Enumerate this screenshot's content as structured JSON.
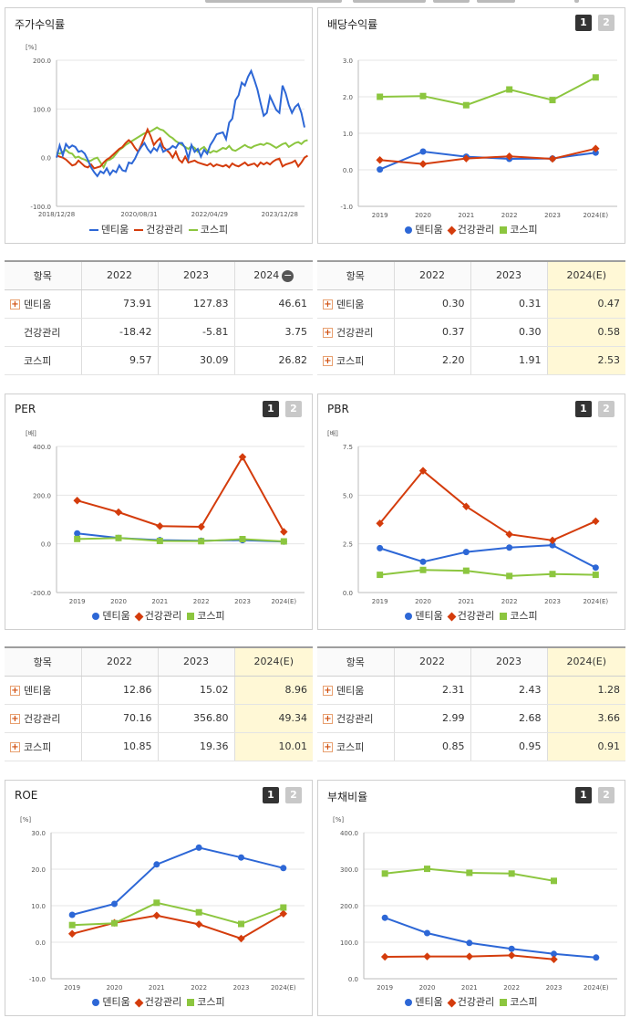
{
  "ui": {
    "btn1": "1",
    "btn2": "2",
    "minus": "−",
    "plus": "+"
  },
  "colors": {
    "dentium": "#2d67d6",
    "health": "#d43c0c",
    "kospi": "#8cc63f"
  },
  "legend": [
    "덴티움",
    "건강관리",
    "코스피"
  ],
  "charts": {
    "stock": {
      "title": "주가수익률",
      "chart_data": {
        "type": "line",
        "unit": "[%]",
        "ylim": [
          -100,
          200
        ],
        "yticks": [
          -100,
          0,
          100,
          200
        ],
        "ytick_labels": [
          "-100.0",
          "0.0",
          "100.0",
          "200.0"
        ],
        "xtick_labels": [
          "2018/12/28",
          "2020/08/31",
          "2022/04/29",
          "2023/12/28"
        ],
        "grid": true,
        "legend_position": "bottom",
        "series": [
          {
            "name": "덴티움",
            "values": [
              0,
              25,
              5,
              28,
              20,
              25,
              22,
              12,
              14,
              8,
              -5,
              -20,
              -30,
              -38,
              -28,
              -32,
              -22,
              -35,
              -26,
              -30,
              -16,
              -26,
              -28,
              -10,
              -12,
              -2,
              12,
              22,
              30,
              18,
              10,
              20,
              14,
              28,
              12,
              16,
              18,
              24,
              20,
              30,
              30,
              20,
              -2,
              26,
              12,
              18,
              2,
              16,
              8,
              26,
              36,
              48,
              50,
              52,
              38,
              72,
              80,
              118,
              128,
              154,
              148,
              166,
              178,
              160,
              140,
              112,
              86,
              92,
              126,
              112,
              98,
              92,
              148,
              132,
              108,
              92,
              104,
              110,
              92,
              62
            ]
          },
          {
            "name": "건강관리",
            "values": [
              5,
              2,
              0,
              -4,
              -10,
              -16,
              -14,
              -6,
              -12,
              -18,
              -20,
              -14,
              -22,
              -20,
              -18,
              -10,
              -4,
              0,
              6,
              12,
              18,
              22,
              30,
              36,
              30,
              20,
              12,
              26,
              42,
              58,
              44,
              26,
              34,
              40,
              22,
              16,
              10,
              0,
              12,
              -4,
              -10,
              2,
              -10,
              -8,
              -6,
              -10,
              -12,
              -14,
              -16,
              -12,
              -18,
              -14,
              -16,
              -18,
              -15,
              -20,
              -12,
              -16,
              -18,
              -14,
              -10,
              -16,
              -14,
              -12,
              -18,
              -10,
              -14,
              -10,
              -14,
              -8,
              -4,
              -2,
              -18,
              -14,
              -12,
              -10,
              -6,
              -18,
              -10,
              0,
              4
            ]
          },
          {
            "name": "코스피",
            "values": [
              10,
              8,
              12,
              16,
              10,
              8,
              0,
              2,
              -2,
              -4,
              -8,
              -6,
              -2,
              0,
              -10,
              -20,
              -6,
              -4,
              0,
              8,
              16,
              20,
              26,
              30,
              34,
              38,
              42,
              46,
              50,
              52,
              54,
              58,
              62,
              58,
              56,
              50,
              44,
              40,
              34,
              30,
              26,
              22,
              18,
              24,
              20,
              12,
              18,
              22,
              14,
              10,
              14,
              12,
              16,
              20,
              18,
              24,
              16,
              14,
              18,
              22,
              26,
              22,
              20,
              24,
              26,
              28,
              26,
              30,
              28,
              24,
              20,
              24,
              28,
              30,
              22,
              26,
              30,
              32,
              28,
              34,
              36
            ]
          }
        ]
      }
    },
    "dividend": {
      "title": "배당수익률",
      "chart_data": {
        "type": "line",
        "ylim": [
          -1,
          3
        ],
        "yticks": [
          -1,
          0,
          1,
          2,
          3
        ],
        "ytick_labels": [
          "-1.0",
          "0.0",
          "1.0",
          "2.0",
          "3.0"
        ],
        "categories": [
          "2019",
          "2020",
          "2021",
          "2022",
          "2023",
          "2024(E)"
        ],
        "grid": true,
        "legend_position": "bottom",
        "series": [
          {
            "name": "덴티움",
            "values": [
              0.01,
              0.5,
              0.36,
              0.3,
              0.31,
              0.47
            ]
          },
          {
            "name": "건강관리",
            "values": [
              0.27,
              0.16,
              0.31,
              0.37,
              0.3,
              0.58
            ]
          },
          {
            "name": "코스피",
            "values": [
              2.0,
              2.02,
              1.77,
              2.2,
              1.91,
              2.53
            ]
          }
        ]
      }
    },
    "per": {
      "title": "PER",
      "chart_data": {
        "type": "line",
        "unit": "[배]",
        "ylim": [
          -200,
          400
        ],
        "yticks": [
          -200,
          0,
          200,
          400
        ],
        "ytick_labels": [
          "-200.0",
          "0.0",
          "200.0",
          "400.0"
        ],
        "categories": [
          "2019",
          "2020",
          "2021",
          "2022",
          "2023",
          "2024(E)"
        ],
        "grid": true,
        "legend_position": "bottom",
        "series": [
          {
            "name": "덴티움",
            "values": [
              43,
              24,
              15,
              12.86,
              15.02,
              8.96
            ]
          },
          {
            "name": "건강관리",
            "values": [
              178,
              130,
              73,
              70.16,
              356.8,
              49.34
            ]
          },
          {
            "name": "코스피",
            "values": [
              20,
              24,
              12,
              10.85,
              19.36,
              10.01
            ]
          }
        ]
      }
    },
    "pbr": {
      "title": "PBR",
      "chart_data": {
        "type": "line",
        "unit": "[배]",
        "ylim": [
          0,
          7.5
        ],
        "yticks": [
          0,
          2.5,
          5,
          7.5
        ],
        "ytick_labels": [
          "0.0",
          "2.5",
          "5.0",
          "7.5"
        ],
        "categories": [
          "2019",
          "2020",
          "2021",
          "2022",
          "2023",
          "2024(E)"
        ],
        "grid": true,
        "legend_position": "bottom",
        "series": [
          {
            "name": "덴티움",
            "values": [
              2.28,
              1.58,
              2.08,
              2.31,
              2.43,
              1.28
            ]
          },
          {
            "name": "건강관리",
            "values": [
              3.55,
              6.25,
              4.42,
              2.99,
              2.68,
              3.66
            ]
          },
          {
            "name": "코스피",
            "values": [
              0.91,
              1.16,
              1.12,
              0.85,
              0.95,
              0.91
            ]
          }
        ]
      }
    },
    "roe": {
      "title": "ROE",
      "chart_data": {
        "type": "line",
        "unit": "[%]",
        "ylim": [
          -10,
          30
        ],
        "yticks": [
          -10,
          0,
          10,
          20,
          30
        ],
        "ytick_labels": [
          "-10.0",
          "0.0",
          "10.0",
          "20.0",
          "30.0"
        ],
        "categories": [
          "2019",
          "2020",
          "2021",
          "2022",
          "2023",
          "2024(E)"
        ],
        "grid": true,
        "legend_position": "bottom",
        "series": [
          {
            "name": "덴티움",
            "values": [
              7.5,
              10.5,
              21.3,
              25.9,
              23.2,
              20.3
            ]
          },
          {
            "name": "건강관리",
            "values": [
              2.3,
              5.3,
              7.3,
              4.9,
              1.0,
              7.8
            ]
          },
          {
            "name": "코스피",
            "values": [
              4.7,
              5.2,
              10.8,
              8.2,
              5.0,
              9.5
            ]
          }
        ]
      }
    },
    "debt": {
      "title": "부채비율",
      "chart_data": {
        "type": "line",
        "unit": "[%]",
        "ylim": [
          0,
          400
        ],
        "yticks": [
          0,
          100,
          200,
          300,
          400
        ],
        "ytick_labels": [
          "0.0",
          "100.0",
          "200.0",
          "300.0",
          "400.0"
        ],
        "categories": [
          "2019",
          "2020",
          "2021",
          "2022",
          "2023",
          "2024(E)"
        ],
        "grid": true,
        "legend_position": "bottom",
        "series": [
          {
            "name": "덴티움",
            "values": [
              167,
              125,
              98,
              82,
              68,
              58
            ]
          },
          {
            "name": "건강관리",
            "values": [
              60,
              61,
              61,
              64,
              53,
              null
            ]
          },
          {
            "name": "코스피",
            "values": [
              288,
              301,
              290,
              288,
              268,
              null
            ]
          }
        ]
      }
    }
  },
  "tables": {
    "stock": {
      "headers": [
        "항목",
        "2022",
        "2023",
        "2024"
      ],
      "rows": [
        {
          "name": "덴티움",
          "plus": true,
          "values": [
            "73.91",
            "127.83",
            "46.61"
          ]
        },
        {
          "name": "건강관리",
          "plus": false,
          "values": [
            "-18.42",
            "-5.81",
            "3.75"
          ]
        },
        {
          "name": "코스피",
          "plus": false,
          "values": [
            "9.57",
            "30.09",
            "26.82"
          ]
        }
      ]
    },
    "dividend": {
      "headers": [
        "항목",
        "2022",
        "2023",
        "2024(E)"
      ],
      "rows": [
        {
          "name": "덴티움",
          "plus": true,
          "values": [
            "0.30",
            "0.31",
            "0.47"
          ]
        },
        {
          "name": "건강관리",
          "plus": true,
          "values": [
            "0.37",
            "0.30",
            "0.58"
          ]
        },
        {
          "name": "코스피",
          "plus": true,
          "values": [
            "2.20",
            "1.91",
            "2.53"
          ]
        }
      ]
    },
    "per": {
      "headers": [
        "항목",
        "2022",
        "2023",
        "2024(E)"
      ],
      "rows": [
        {
          "name": "덴티움",
          "plus": true,
          "values": [
            "12.86",
            "15.02",
            "8.96"
          ]
        },
        {
          "name": "건강관리",
          "plus": true,
          "values": [
            "70.16",
            "356.80",
            "49.34"
          ]
        },
        {
          "name": "코스피",
          "plus": true,
          "values": [
            "10.85",
            "19.36",
            "10.01"
          ]
        }
      ]
    },
    "pbr": {
      "headers": [
        "항목",
        "2022",
        "2023",
        "2024(E)"
      ],
      "rows": [
        {
          "name": "덴티움",
          "plus": true,
          "values": [
            "2.31",
            "2.43",
            "1.28"
          ]
        },
        {
          "name": "건강관리",
          "plus": true,
          "values": [
            "2.99",
            "2.68",
            "3.66"
          ]
        },
        {
          "name": "코스피",
          "plus": true,
          "values": [
            "0.85",
            "0.95",
            "0.91"
          ]
        }
      ]
    }
  }
}
